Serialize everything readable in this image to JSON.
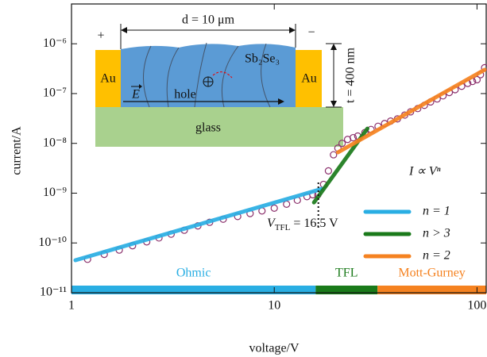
{
  "chart_data": {
    "type": "scatter",
    "x_label": "voltage/V",
    "y_label": "current/A",
    "log_x": true,
    "log_y": true,
    "xlim": [
      1,
      111
    ],
    "ylim": [
      1e-11,
      6.3e-06
    ],
    "xticks": [
      1,
      10,
      100
    ],
    "yticks": [
      {
        "value": 1e-11,
        "label": "10⁻¹¹"
      },
      {
        "value": 1e-10,
        "label": "10⁻¹⁰"
      },
      {
        "value": 1e-09,
        "label": "10⁻⁹"
      },
      {
        "value": 1e-08,
        "label": "10⁻⁸"
      },
      {
        "value": 1e-07,
        "label": "10⁻⁷"
      },
      {
        "value": 1e-06,
        "label": "10⁻⁶"
      }
    ],
    "points": {
      "color": "#8b2f6b",
      "x": [
        1.2,
        1.45,
        1.72,
        2.0,
        2.35,
        2.7,
        3.1,
        3.6,
        4.2,
        4.8,
        5.6,
        6.6,
        7.6,
        8.7,
        10,
        11.5,
        13,
        14.5,
        15.5,
        16.4,
        17.5,
        18.5,
        19.6,
        20.6,
        21.6,
        23,
        24.5,
        25.8,
        28,
        30,
        32.5,
        35,
        37.5,
        40.5,
        44,
        47,
        51,
        55,
        59,
        63.6,
        68,
        73,
        78,
        84,
        90,
        95,
        100,
        104,
        109
      ],
      "values": [
        4.7e-11,
        5.9e-11,
        7.2e-11,
        8.8e-11,
        1.05e-10,
        1.26e-10,
        1.5e-10,
        1.8e-10,
        2.2e-10,
        2.6e-10,
        3e-10,
        3.4e-10,
        3.9e-10,
        4.4e-10,
        5e-10,
        6e-10,
        7.2e-10,
        8.5e-10,
        9.3e-10,
        9.3e-10,
        1.5e-09,
        2.8e-09,
        5.9e-09,
        8e-09,
        1e-08,
        1.2e-08,
        1.3e-08,
        1.4e-08,
        1.65e-08,
        1.9e-08,
        2.2e-08,
        2.5e-08,
        2.8e-08,
        3.1e-08,
        3.7e-08,
        4.3e-08,
        5e-08,
        5.8e-08,
        6.8e-08,
        7.8e-08,
        9e-08,
        1.05e-07,
        1.2e-07,
        1.4e-07,
        1.6e-07,
        1.75e-07,
        1.9e-07,
        2.4e-07,
        3.3e-07
      ]
    },
    "legend_title": "I ∝ Vⁿ",
    "legend_position": "right",
    "fits": [
      {
        "name": "n = 1",
        "color": "#29aee3",
        "x": [
          1.046,
          17.2
        ],
        "values": [
          4.5e-11,
          1.22e-09
        ]
      },
      {
        "name": "n > 3",
        "color": "#1a7a1a",
        "x": [
          15.7,
          28.8
        ],
        "values": [
          6.5e-10,
          1.98e-08
        ]
      },
      {
        "name": "n = 2",
        "color": "#f58220",
        "x": [
          20.6,
          109
        ],
        "values": [
          6.6e-09,
          3e-07
        ]
      }
    ],
    "tfl_voltage": 16.5,
    "annotation": {
      "symbol": "V",
      "subscript": "TFL",
      "text": " = 16.5 V"
    },
    "regions": [
      {
        "name": "Ohmic",
        "from": 1,
        "to": 16.0,
        "color": "#29aee3"
      },
      {
        "name": "TFL",
        "from": 16.0,
        "to": 32.3,
        "color": "#1a7a1a"
      },
      {
        "name": "Mott-Gurney",
        "from": 32.3,
        "to": 111,
        "color": "#f58220"
      }
    ]
  },
  "inset": {
    "plus": "+",
    "minus": "−",
    "width": "d = 10 μm",
    "thickness": "t = 400 nm",
    "left_electrode": "Au",
    "right_electrode": "Au",
    "film": "Sb₂Se₃",
    "carrier": "hole",
    "field": "E",
    "substrate": "glass"
  }
}
